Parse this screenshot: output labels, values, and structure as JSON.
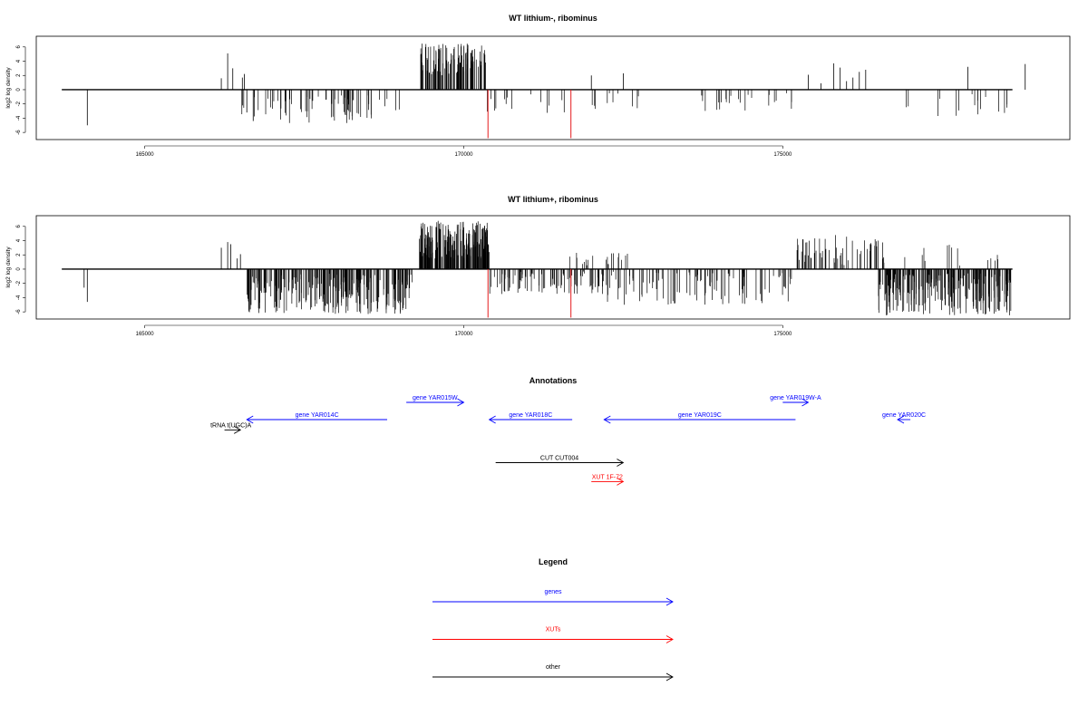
{
  "colors": {
    "default": "#000000",
    "red": "#e41a1c",
    "blue": "#0000ff",
    "xut": "#ff0000"
  },
  "chart_data": [
    {
      "type": "bar",
      "title": "WT lithium-, ribominus",
      "ylabel": "log2 log density",
      "xlim": [
        163300,
        179500
      ],
      "ylim": [
        -7,
        7.5
      ],
      "x_ticks": [
        "165000",
        "170000",
        "175000"
      ],
      "x_tick_values": [
        165000,
        170000,
        175000
      ],
      "y_ticks": [
        "-6",
        "-4",
        "-2",
        "0",
        "2",
        "4",
        "6"
      ],
      "y_tick_values": [
        -6,
        -4,
        -2,
        0,
        2,
        4,
        6
      ],
      "baseline_range": [
        163700,
        178600
      ],
      "highlight": [
        {
          "x": 170380,
          "y": -6.8
        },
        {
          "x": 171680,
          "y": -6.8
        }
      ],
      "density_regions": [
        {
          "start": 166500,
          "end": 169000,
          "count": 70,
          "min": -4.7,
          "max": -0.8
        },
        {
          "start": 169300,
          "end": 170350,
          "count": 110,
          "min": 2.0,
          "max": 6.5
        },
        {
          "start": 170350,
          "end": 171800,
          "count": 14,
          "min": -3.5,
          "max": -0.4
        },
        {
          "start": 172000,
          "end": 172800,
          "count": 10,
          "min": -2.8,
          "max": -0.4
        },
        {
          "start": 173500,
          "end": 175200,
          "count": 24,
          "min": -3.0,
          "max": -0.4
        },
        {
          "start": 176500,
          "end": 178600,
          "count": 16,
          "min": -3.8,
          "max": -0.4
        }
      ],
      "values": [
        {
          "x": 164100,
          "y": -5.0
        },
        {
          "x": 166200,
          "y": 1.6
        },
        {
          "x": 166300,
          "y": 5.1
        },
        {
          "x": 166380,
          "y": 3.0
        },
        {
          "x": 166530,
          "y": 1.7
        },
        {
          "x": 166560,
          "y": 2.2
        },
        {
          "x": 166600,
          "y": -3.2
        },
        {
          "x": 166700,
          "y": -4.4
        },
        {
          "x": 172000,
          "y": 2.0
        },
        {
          "x": 172500,
          "y": 2.3
        },
        {
          "x": 175400,
          "y": 2.1
        },
        {
          "x": 175600,
          "y": 0.9
        },
        {
          "x": 175800,
          "y": 3.7
        },
        {
          "x": 175900,
          "y": 3.1
        },
        {
          "x": 176000,
          "y": 1.2
        },
        {
          "x": 176100,
          "y": 1.7
        },
        {
          "x": 176200,
          "y": 2.5
        },
        {
          "x": 176300,
          "y": 2.8
        },
        {
          "x": 177900,
          "y": 3.2
        },
        {
          "x": 178800,
          "y": 3.6
        }
      ]
    },
    {
      "type": "bar",
      "title": "WT lithium+, ribominus",
      "ylabel": "log2 log density",
      "xlim": [
        163300,
        179500
      ],
      "ylim": [
        -7,
        7.5
      ],
      "x_ticks": [
        "165000",
        "170000",
        "175000"
      ],
      "x_tick_values": [
        165000,
        170000,
        175000
      ],
      "y_ticks": [
        "-6",
        "-4",
        "-2",
        "0",
        "2",
        "4",
        "6"
      ],
      "y_tick_values": [
        -6,
        -4,
        -2,
        0,
        2,
        4,
        6
      ],
      "baseline_range": [
        163700,
        178600
      ],
      "highlight": [
        {
          "x": 170380,
          "y": -6.8
        },
        {
          "x": 171680,
          "y": -6.8
        }
      ],
      "density_regions": [
        {
          "start": 166600,
          "end": 169200,
          "count": 260,
          "min": -6.3,
          "max": -0.6
        },
        {
          "start": 169300,
          "end": 170400,
          "count": 200,
          "min": 1.5,
          "max": 6.8
        },
        {
          "start": 170400,
          "end": 172200,
          "count": 90,
          "min": -3.5,
          "max": -0.3
        },
        {
          "start": 171600,
          "end": 172600,
          "count": 20,
          "min": 0.5,
          "max": 2.3
        },
        {
          "start": 172200,
          "end": 175200,
          "count": 100,
          "min": -5.0,
          "max": -0.3
        },
        {
          "start": 175200,
          "end": 176600,
          "count": 60,
          "min": 0.5,
          "max": 4.8
        },
        {
          "start": 176500,
          "end": 178600,
          "count": 230,
          "min": -6.5,
          "max": -0.6
        },
        {
          "start": 176800,
          "end": 178400,
          "count": 14,
          "min": 0.5,
          "max": 3.5
        }
      ],
      "values": [
        {
          "x": 164050,
          "y": -2.6
        },
        {
          "x": 164100,
          "y": -4.6
        },
        {
          "x": 166200,
          "y": 3.0
        },
        {
          "x": 166300,
          "y": 3.8
        },
        {
          "x": 166350,
          "y": 3.5
        },
        {
          "x": 166450,
          "y": 1.5
        },
        {
          "x": 166500,
          "y": 2.1
        }
      ]
    }
  ],
  "annotations": {
    "title": "Annotations",
    "items": [
      {
        "label": "tRNA t(UGC)A",
        "start": 166250,
        "end": 166500,
        "row": 0.6,
        "type": "other",
        "direction": "+",
        "label_x": 166350
      },
      {
        "label": "gene YAR014C",
        "start": 166600,
        "end": 168800,
        "row": 0,
        "type": "genes",
        "direction": "-"
      },
      {
        "label": "gene YAR015W",
        "start": 169100,
        "end": 170000,
        "row": -1,
        "type": "genes",
        "direction": "+"
      },
      {
        "label": "gene YAR018C",
        "start": 170400,
        "end": 171700,
        "row": 0,
        "type": "genes",
        "direction": "-"
      },
      {
        "label": "gene YAR019C",
        "start": 172200,
        "end": 175200,
        "row": 0,
        "type": "genes",
        "direction": "-"
      },
      {
        "label": "gene YAR019W-A",
        "start": 175000,
        "end": 175400,
        "row": -1,
        "type": "genes",
        "direction": "+"
      },
      {
        "label": "gene YAR020C",
        "start": 176800,
        "end": 177000,
        "row": 0,
        "type": "genes",
        "direction": "-"
      },
      {
        "label": "CUT CUT004",
        "start": 170500,
        "end": 172500,
        "row": 2.5,
        "type": "other",
        "direction": "+"
      },
      {
        "label": "XUT 1F-72",
        "start": 172000,
        "end": 172500,
        "row": 3.6,
        "type": "xut",
        "direction": "+"
      }
    ]
  },
  "legend": {
    "title": "Legend",
    "items": [
      {
        "label": "genes",
        "type": "genes"
      },
      {
        "label": "XUTs",
        "type": "xut"
      },
      {
        "label": "other",
        "type": "other"
      }
    ]
  }
}
